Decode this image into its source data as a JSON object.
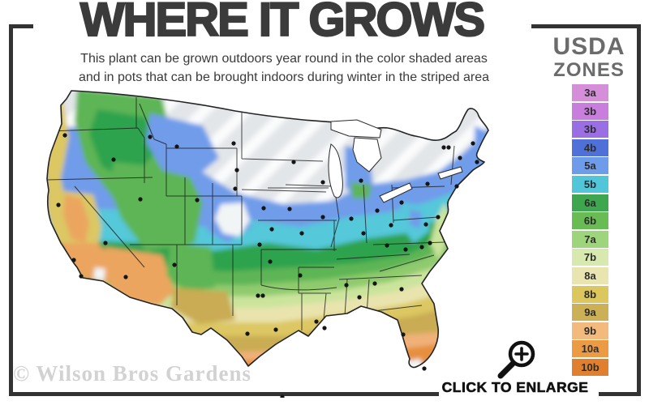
{
  "header": {
    "title": "WHERE IT GROWS",
    "subtitle_line1": "This plant can be grown outdoors year round in the color shaded areas",
    "subtitle_line2": "and in pots that can be brought indoors during winter in the striped area"
  },
  "legend": {
    "title_line1": "USDA",
    "title_line2": "ZONES",
    "zones": [
      {
        "label": "3a",
        "color": "#D58FD9"
      },
      {
        "label": "3b",
        "color": "#C77EDC"
      },
      {
        "label": "3b",
        "color": "#9B6FE4"
      },
      {
        "label": "4b",
        "color": "#4F6FD9"
      },
      {
        "label": "5a",
        "color": "#6E9BEA"
      },
      {
        "label": "5b",
        "color": "#52C6D9"
      },
      {
        "label": "6a",
        "color": "#3EA64F"
      },
      {
        "label": "6b",
        "color": "#69BB53"
      },
      {
        "label": "7a",
        "color": "#9ED47C"
      },
      {
        "label": "7b",
        "color": "#D7E9AE"
      },
      {
        "label": "8a",
        "color": "#EAE5B0"
      },
      {
        "label": "8b",
        "color": "#DCC75E"
      },
      {
        "label": "9a",
        "color": "#CBB056"
      },
      {
        "label": "9b",
        "color": "#F2BA7D"
      },
      {
        "label": "10a",
        "color": "#EC9B45"
      },
      {
        "label": "10b",
        "color": "#E0802F"
      }
    ]
  },
  "map": {
    "palette": {
      "striped_base": "#E3E6E9",
      "stripe_light": "#FAFBFC",
      "blue": "#6F9CEA",
      "cyan": "#55C8DA",
      "green_dark": "#2FA34D",
      "green_mid": "#5DB554",
      "green_light": "#8FCB6E",
      "pale_green": "#CBE49C",
      "pale_yellow": "#E9E4AE",
      "gold": "#DCC763",
      "khaki": "#C9AC52",
      "peach": "#F0B179",
      "orange": "#E78F3C",
      "orange_light": "#EBA55F",
      "snow_white": "#F2F5F6",
      "lake": "#FFFFFF"
    }
  },
  "footer": {
    "watermark": "© Wilson Bros Gardens",
    "enlarge_label": "CLICK TO ENLARGE"
  }
}
